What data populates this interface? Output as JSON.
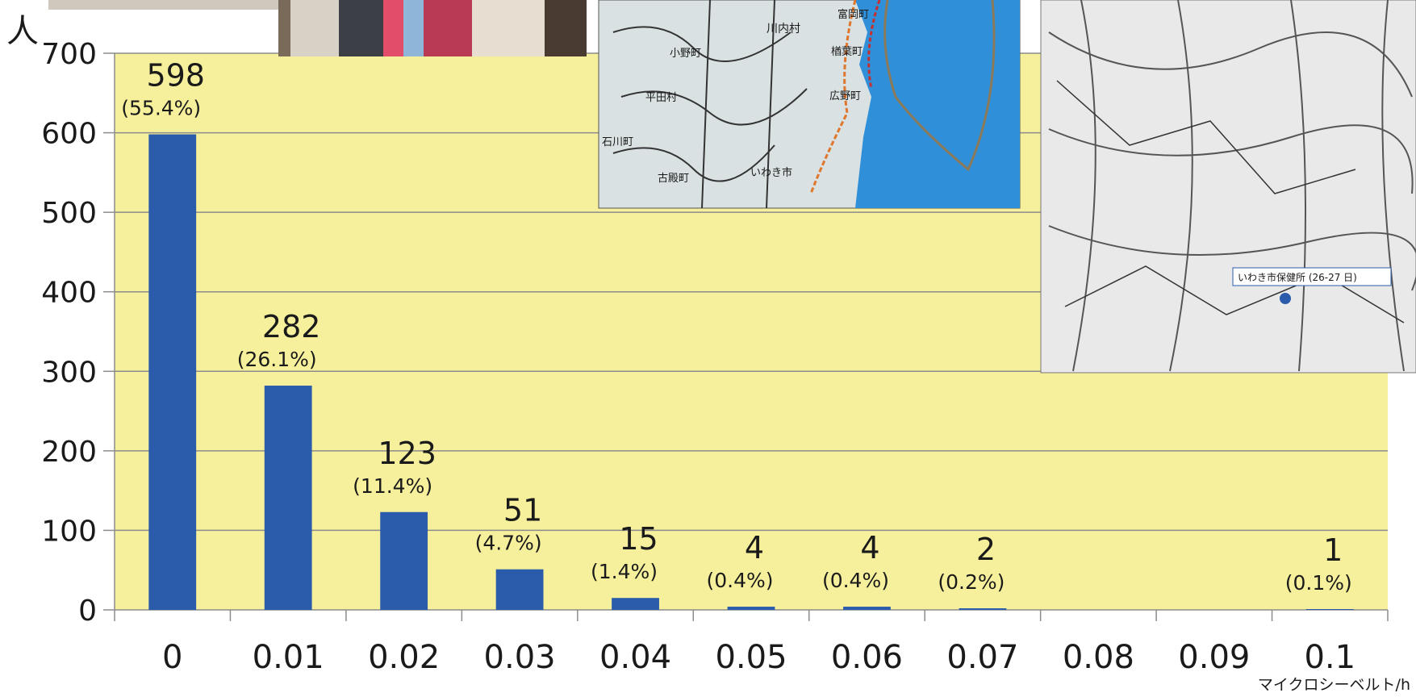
{
  "chart_data": {
    "type": "bar",
    "ylabel": "人",
    "xlabel": "マイクロシーベルト/h",
    "categories": [
      "0",
      "0.01",
      "0.02",
      "0.03",
      "0.04",
      "0.05",
      "0.06",
      "0.07",
      "0.08",
      "0.09",
      "0.1"
    ],
    "values": [
      598,
      282,
      123,
      51,
      15,
      4,
      4,
      2,
      0,
      0,
      1
    ],
    "value_labels": [
      "598",
      "282",
      "123",
      "51",
      "15",
      "4",
      "4",
      "2",
      "",
      "",
      "1"
    ],
    "percent_labels": [
      "(55.4%)",
      "(26.1%)",
      "(11.4%)",
      "(4.7%)",
      "(1.4%)",
      "(0.4%)",
      "(0.4%)",
      "(0.2%)",
      "",
      "",
      "(0.1%)"
    ],
    "y_ticks": [
      "0",
      "100",
      "200",
      "300",
      "400",
      "500",
      "600",
      "700"
    ],
    "ylim": [
      0,
      700
    ],
    "grid": true,
    "colors": {
      "bar": "#2b5cab",
      "plot_background": "#f6f09c",
      "gridline": "#8c8c8c",
      "axis": "#8c8c8c"
    }
  },
  "insets": {
    "photo_icon": "photo-inset",
    "regional_map_icon": "regional-map-inset",
    "local_map_icon": "local-map-inset",
    "regional_map_places": [
      "川内村",
      "富岡町",
      "楢葉町",
      "小野町",
      "平田村",
      "広野町",
      "石川町",
      "古殿町",
      "いわき市"
    ],
    "local_map_marker": "いわき市保健所 (26-27 日)"
  }
}
